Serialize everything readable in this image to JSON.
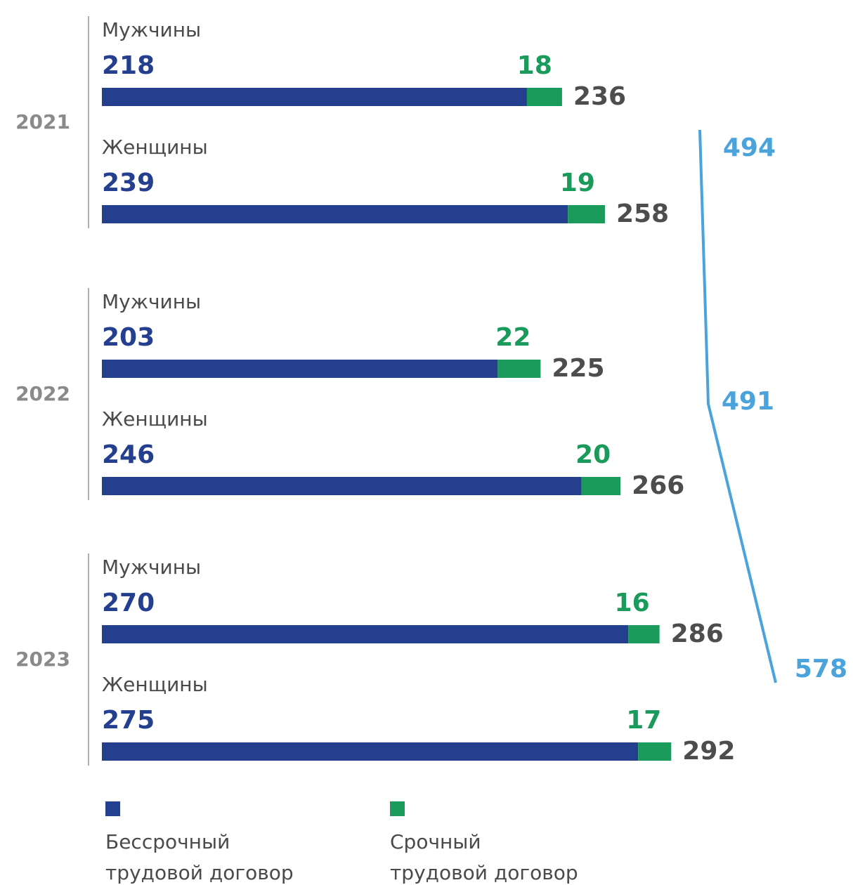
{
  "chart_data": {
    "type": "bar",
    "orientation": "horizontal",
    "stacked": true,
    "title": "",
    "colors": {
      "permanent": "#253f8f",
      "temporary": "#1a9a5b",
      "total_label": "#4d4d4d",
      "year_total": "#4aa3db",
      "year_label": "#8a8a8a"
    },
    "legend": [
      {
        "name": "Бессрочный",
        "name2": "трудовой договор",
        "color": "#253f8f"
      },
      {
        "name": "Срочный",
        "name2": "трудовой договор",
        "color": "#1a9a5b"
      }
    ],
    "groups": [
      {
        "year": "2021",
        "total": 494,
        "rows": [
          {
            "label": "Мужчины",
            "permanent": 218,
            "temporary": 18,
            "total": 236
          },
          {
            "label": "Женщины",
            "permanent": 239,
            "temporary": 19,
            "total": 258
          }
        ]
      },
      {
        "year": "2022",
        "total": 491,
        "rows": [
          {
            "label": "Мужчины",
            "permanent": 203,
            "temporary": 22,
            "total": 225
          },
          {
            "label": "Женщины",
            "permanent": 246,
            "temporary": 20,
            "total": 266
          }
        ]
      },
      {
        "year": "2023",
        "total": 578,
        "rows": [
          {
            "label": "Мужчины",
            "permanent": 270,
            "temporary": 16,
            "total": 286
          },
          {
            "label": "Женщины",
            "permanent": 275,
            "temporary": 17,
            "total": 292
          }
        ]
      }
    ]
  }
}
